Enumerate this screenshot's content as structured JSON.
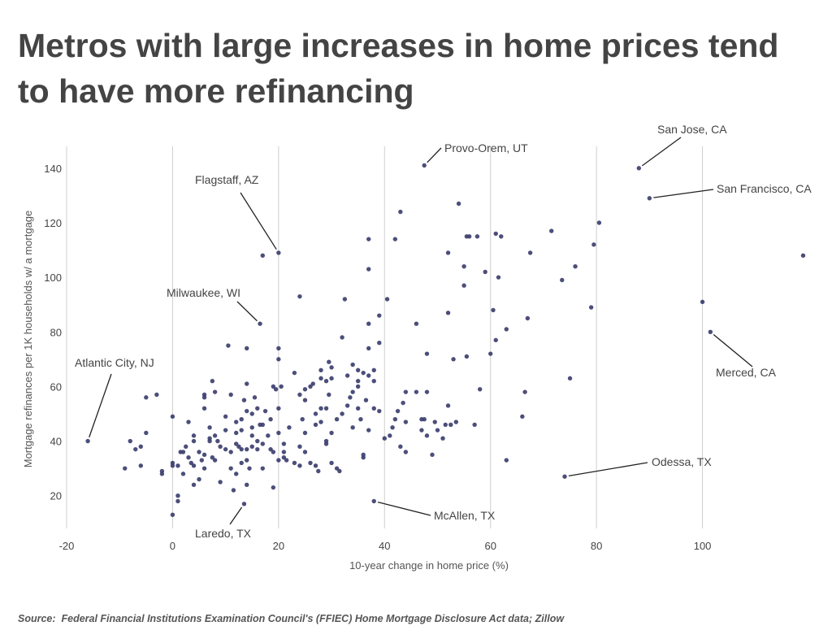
{
  "title": "Metros with large increases in home prices tend to have more refinancing",
  "source": "Source:  Federal Financial Institutions Examination Council's (FFIEC) Home Mortgage Disclosure Act data; Zillow",
  "colors": {
    "point": "#3d3f6f",
    "grid": "#cfcfcf",
    "text": "#444444"
  },
  "chart_data": {
    "type": "scatter",
    "title": "Metros with large increases in home prices tend to have more refinancing",
    "xlabel": "10-year change in home price (%)",
    "ylabel": "Mortgage refinances per 1K households w/ a mortgage",
    "xlim": [
      -20,
      120
    ],
    "ylim": [
      8,
      148
    ],
    "xticks": [
      -20,
      0,
      20,
      40,
      60,
      80,
      100
    ],
    "xtick_labels": [
      "-20",
      "0",
      "20",
      "40",
      "60",
      "80",
      "100"
    ],
    "yticks": [
      20,
      40,
      60,
      80,
      100,
      120,
      140
    ],
    "ytick_labels": [
      "20",
      "40",
      "60",
      "80",
      "100",
      "120",
      "140"
    ],
    "grid": "vertical",
    "annotations": [
      {
        "label": "San Jose, CA",
        "x": 88,
        "y": 140
      },
      {
        "label": "Provo-Orem, UT",
        "x": 47.5,
        "y": 141
      },
      {
        "label": "San Francisco, CA",
        "x": 90,
        "y": 129
      },
      {
        "label": "Flagstaff, AZ",
        "x": 20,
        "y": 109
      },
      {
        "label": "Milwaukee, WI",
        "x": 16.5,
        "y": 83
      },
      {
        "label": "Atlantic City, NJ",
        "x": -16,
        "y": 40
      },
      {
        "label": "Merced, CA",
        "x": 101.5,
        "y": 80
      },
      {
        "label": "Odessa, TX",
        "x": 74,
        "y": 27
      },
      {
        "label": "McAllen, TX",
        "x": 38,
        "y": 18
      },
      {
        "label": "Laredo, TX",
        "x": 13.5,
        "y": 17
      }
    ],
    "points": [
      [
        88,
        140
      ],
      [
        47.5,
        141
      ],
      [
        90,
        129
      ],
      [
        20,
        109
      ],
      [
        16.5,
        83
      ],
      [
        -16,
        40
      ],
      [
        101.5,
        80
      ],
      [
        74,
        27
      ],
      [
        38,
        18
      ],
      [
        13.5,
        17
      ],
      [
        -9,
        30
      ],
      [
        -8,
        40
      ],
      [
        -7,
        37
      ],
      [
        -6,
        31
      ],
      [
        -6,
        38
      ],
      [
        -5,
        56
      ],
      [
        -5,
        43
      ],
      [
        -3,
        57
      ],
      [
        -2,
        29
      ],
      [
        -2,
        28
      ],
      [
        0,
        49
      ],
      [
        0,
        32
      ],
      [
        0,
        31
      ],
      [
        0,
        13
      ],
      [
        1,
        20
      ],
      [
        1,
        18
      ],
      [
        1,
        31
      ],
      [
        1.5,
        36
      ],
      [
        2,
        36
      ],
      [
        2,
        28
      ],
      [
        2.5,
        38
      ],
      [
        3,
        47
      ],
      [
        3,
        34
      ],
      [
        3.5,
        32
      ],
      [
        4,
        31
      ],
      [
        4,
        42
      ],
      [
        4,
        40
      ],
      [
        4,
        24
      ],
      [
        5,
        26
      ],
      [
        5,
        36
      ],
      [
        5.5,
        33
      ],
      [
        6,
        57
      ],
      [
        6,
        52
      ],
      [
        6,
        35
      ],
      [
        6,
        30
      ],
      [
        6,
        56
      ],
      [
        7,
        45
      ],
      [
        7,
        41
      ],
      [
        7,
        40
      ],
      [
        7.5,
        62
      ],
      [
        7.5,
        34
      ],
      [
        8,
        58
      ],
      [
        8,
        42
      ],
      [
        8,
        33
      ],
      [
        8.5,
        40
      ],
      [
        9,
        38
      ],
      [
        9,
        25
      ],
      [
        10,
        44
      ],
      [
        10,
        37
      ],
      [
        10,
        49
      ],
      [
        10.5,
        75
      ],
      [
        11,
        57
      ],
      [
        11,
        36
      ],
      [
        11,
        30
      ],
      [
        11.5,
        22
      ],
      [
        12,
        47
      ],
      [
        12,
        39
      ],
      [
        12,
        28
      ],
      [
        12,
        43
      ],
      [
        12.5,
        38
      ],
      [
        13,
        37
      ],
      [
        13,
        48
      ],
      [
        13,
        32
      ],
      [
        13,
        44
      ],
      [
        13.5,
        55
      ],
      [
        14,
        61
      ],
      [
        14,
        51
      ],
      [
        14,
        37
      ],
      [
        14,
        33
      ],
      [
        14,
        74
      ],
      [
        14,
        24
      ],
      [
        14.5,
        30
      ],
      [
        15,
        50
      ],
      [
        15,
        45
      ],
      [
        15,
        42
      ],
      [
        15,
        38
      ],
      [
        15.5,
        56
      ],
      [
        16,
        40
      ],
      [
        16,
        52
      ],
      [
        16,
        37
      ],
      [
        16.5,
        46
      ],
      [
        17,
        108
      ],
      [
        17,
        46
      ],
      [
        17,
        39
      ],
      [
        17,
        30
      ],
      [
        17.5,
        51
      ],
      [
        18,
        42
      ],
      [
        18.5,
        48
      ],
      [
        18.5,
        37
      ],
      [
        19,
        60
      ],
      [
        19,
        23
      ],
      [
        19,
        36
      ],
      [
        19.5,
        59
      ],
      [
        20,
        70
      ],
      [
        20,
        74
      ],
      [
        20,
        52
      ],
      [
        20,
        43
      ],
      [
        20,
        33
      ],
      [
        20.5,
        60
      ],
      [
        21,
        39
      ],
      [
        21,
        34
      ],
      [
        21,
        36
      ],
      [
        21.5,
        33
      ],
      [
        22,
        45
      ],
      [
        23,
        65
      ],
      [
        23,
        32
      ],
      [
        24,
        38
      ],
      [
        24,
        93
      ],
      [
        24,
        57
      ],
      [
        24,
        31
      ],
      [
        24.5,
        48
      ],
      [
        25,
        59
      ],
      [
        25,
        55
      ],
      [
        25,
        43
      ],
      [
        25,
        36
      ],
      [
        26,
        60
      ],
      [
        26,
        32
      ],
      [
        26.5,
        61
      ],
      [
        27,
        50
      ],
      [
        27,
        31
      ],
      [
        27,
        46
      ],
      [
        27.5,
        29
      ],
      [
        28,
        66
      ],
      [
        28,
        63
      ],
      [
        28,
        52
      ],
      [
        28,
        47
      ],
      [
        29,
        62
      ],
      [
        29,
        40
      ],
      [
        29,
        52
      ],
      [
        29,
        39
      ],
      [
        29.5,
        69
      ],
      [
        29.5,
        57
      ],
      [
        30,
        63
      ],
      [
        30,
        67
      ],
      [
        30,
        43
      ],
      [
        30,
        32
      ],
      [
        31,
        48
      ],
      [
        31,
        30
      ],
      [
        31.5,
        29
      ],
      [
        32,
        78
      ],
      [
        32,
        50
      ],
      [
        32.5,
        92
      ],
      [
        33,
        64
      ],
      [
        33,
        53
      ],
      [
        33.5,
        56
      ],
      [
        34,
        58
      ],
      [
        34,
        68
      ],
      [
        34,
        45
      ],
      [
        35,
        62
      ],
      [
        35,
        66
      ],
      [
        35,
        52
      ],
      [
        35,
        60
      ],
      [
        35.5,
        48
      ],
      [
        36,
        65
      ],
      [
        36,
        35
      ],
      [
        36,
        34
      ],
      [
        36.5,
        55
      ],
      [
        37,
        114
      ],
      [
        37,
        103
      ],
      [
        37,
        74
      ],
      [
        37,
        64
      ],
      [
        37,
        44
      ],
      [
        37,
        83
      ],
      [
        38,
        66
      ],
      [
        38,
        62
      ],
      [
        38,
        52
      ],
      [
        39,
        86
      ],
      [
        39,
        76
      ],
      [
        39,
        51
      ],
      [
        40,
        41
      ],
      [
        40.5,
        92
      ],
      [
        41,
        42
      ],
      [
        41.5,
        45
      ],
      [
        42,
        114
      ],
      [
        42,
        48
      ],
      [
        42.5,
        51
      ],
      [
        43,
        124
      ],
      [
        43,
        38
      ],
      [
        43.5,
        54
      ],
      [
        44,
        58
      ],
      [
        44,
        47
      ],
      [
        44,
        36
      ],
      [
        46,
        58
      ],
      [
        46,
        83
      ],
      [
        47,
        48
      ],
      [
        47,
        44
      ],
      [
        47.5,
        48
      ],
      [
        48,
        58
      ],
      [
        48,
        42
      ],
      [
        48,
        72
      ],
      [
        49,
        35
      ],
      [
        49.5,
        47
      ],
      [
        50,
        44
      ],
      [
        51,
        41
      ],
      [
        51.5,
        46
      ],
      [
        52,
        109
      ],
      [
        52,
        87
      ],
      [
        52,
        53
      ],
      [
        52.5,
        46
      ],
      [
        53,
        70
      ],
      [
        53.5,
        47
      ],
      [
        54,
        127
      ],
      [
        55,
        104
      ],
      [
        55,
        97
      ],
      [
        55.5,
        71
      ],
      [
        55.5,
        115
      ],
      [
        56,
        115
      ],
      [
        57,
        46
      ],
      [
        57.5,
        115
      ],
      [
        58,
        59
      ],
      [
        59,
        102
      ],
      [
        60,
        72
      ],
      [
        60.5,
        88
      ],
      [
        61,
        116
      ],
      [
        61,
        77
      ],
      [
        61.5,
        100
      ],
      [
        62,
        115
      ],
      [
        63,
        33
      ],
      [
        63,
        81
      ],
      [
        66,
        49
      ],
      [
        66.5,
        58
      ],
      [
        67,
        85
      ],
      [
        67.5,
        109
      ],
      [
        71.5,
        117
      ],
      [
        73.5,
        99
      ],
      [
        75,
        63
      ],
      [
        76,
        104
      ],
      [
        79,
        89
      ],
      [
        79.5,
        112
      ],
      [
        80.5,
        120
      ],
      [
        100,
        91
      ],
      [
        119,
        108
      ]
    ]
  }
}
